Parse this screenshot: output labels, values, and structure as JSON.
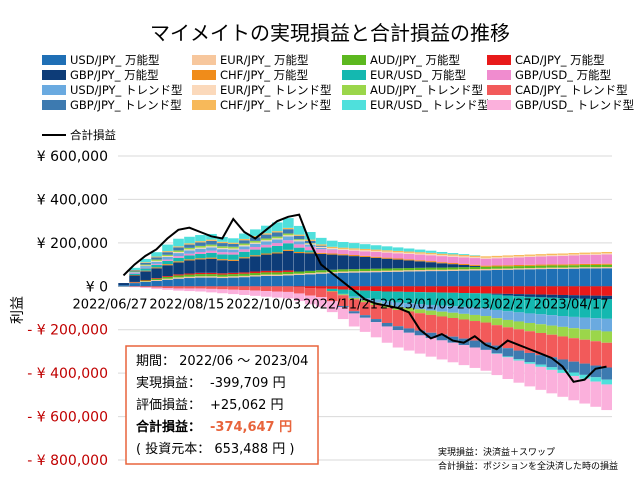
{
  "chart_data": {
    "type": "bar",
    "title": "マイメイトの実現損益と合計損益の推移",
    "ylabel": "利益",
    "ylim": [
      -800000,
      600000
    ],
    "yticks": [
      {
        "value": 600000,
        "label": "¥ 600,000"
      },
      {
        "value": 400000,
        "label": "¥ 400,000"
      },
      {
        "value": 200000,
        "label": "¥ 200,000"
      },
      {
        "value": 0,
        "label": "¥ 0"
      },
      {
        "value": -200000,
        "label": "- ¥ 200,000"
      },
      {
        "value": -400000,
        "label": "- ¥ 400,000"
      },
      {
        "value": -600000,
        "label": "- ¥ 600,000"
      },
      {
        "value": -800000,
        "label": "- ¥ 800,000"
      }
    ],
    "xtick_labels": [
      "2022/06/27",
      "2022/08/15",
      "2022/10/03",
      "2022/11/21",
      "2023/01/09",
      "2023/02/27",
      "2023/04/17"
    ],
    "legend_placement": "top",
    "grid": "horizontal",
    "week_count": 45,
    "series": [
      {
        "name": "USD/JPY_ 万能型",
        "color": "#1f6fb5",
        "values": [
          5000,
          15000,
          20000,
          25000,
          30000,
          35000,
          38000,
          40000,
          40000,
          38000,
          40000,
          42000,
          45000,
          48000,
          48000,
          50000,
          52000,
          55000,
          58000,
          60000,
          62000,
          63000,
          64000,
          65000,
          66000,
          67000,
          68000,
          69000,
          70000,
          70000,
          71000,
          72000,
          73000,
          74000,
          75000,
          76000,
          77000,
          78000,
          79000,
          80000,
          80000,
          81000,
          82000,
          82000,
          83000
        ]
      },
      {
        "name": "EUR/JPY_ 万能型",
        "color": "#f7c79d",
        "values": [
          0,
          2000,
          3000,
          4000,
          5000,
          6000,
          6000,
          6000,
          6000,
          6000,
          6000,
          6000,
          6000,
          6000,
          6000,
          6000,
          6000,
          6000,
          6000,
          6000,
          6000,
          6000,
          6000,
          6000,
          6000,
          6000,
          6000,
          6000,
          6000,
          6000,
          6000,
          6000,
          6000,
          6000,
          6000,
          6000,
          6000,
          6000,
          6000,
          6000,
          6000,
          6000,
          6000,
          6000,
          6000
        ]
      },
      {
        "name": "AUD/JPY_ 万能型",
        "color": "#5cb81f",
        "values": [
          0,
          2000,
          4000,
          6000,
          8000,
          9000,
          10000,
          10000,
          10000,
          10000,
          10000,
          10000,
          10000,
          10000,
          10000,
          10000,
          10000,
          10000,
          10000,
          10000,
          10000,
          10000,
          10000,
          10000,
          10000,
          10000,
          10000,
          10000,
          10000,
          10000,
          10000,
          10000,
          10000,
          10000,
          10000,
          10000,
          10000,
          10000,
          10000,
          10000,
          10000,
          10000,
          10000,
          10000,
          10000
        ]
      },
      {
        "name": "CAD/JPY_ 万能型",
        "color": "#e81a1a",
        "values": [
          0,
          1000,
          2000,
          3000,
          4000,
          5000,
          5000,
          6000,
          6000,
          6000,
          6000,
          6000,
          7000,
          7000,
          7000,
          7000,
          -3000,
          -8000,
          -10000,
          -12000,
          -15000,
          -18000,
          -20000,
          -22000,
          -24000,
          -25000,
          -26000,
          -27000,
          -28000,
          -29000,
          -30000,
          -31000,
          -32000,
          -33000,
          -34000,
          -35000,
          -36000,
          -37000,
          -38000,
          -39000,
          -40000,
          -41000,
          -42000,
          -43000,
          -44000
        ]
      },
      {
        "name": "GBP/JPY_ 万能型",
        "color": "#0d3c78",
        "values": [
          10000,
          30000,
          40000,
          45000,
          50000,
          55000,
          60000,
          62000,
          65000,
          60000,
          55000,
          65000,
          70000,
          75000,
          80000,
          90000,
          85000,
          80000,
          75000,
          70000,
          65000,
          60000,
          55000,
          50000,
          45000,
          40000,
          35000,
          30000,
          25000,
          20000,
          15000,
          10000,
          5000,
          0,
          -5000,
          -8000,
          -10000,
          -12000,
          -13000,
          -14000,
          -15000,
          -16000,
          -16000,
          -16000,
          -16000
        ]
      },
      {
        "name": "CHF/JPY_ 万能型",
        "color": "#f08c1a",
        "values": [
          0,
          2000,
          3000,
          4000,
          5000,
          5000,
          5000,
          5000,
          5000,
          5000,
          5000,
          5000,
          5000,
          5000,
          5000,
          5000,
          5000,
          5000,
          5000,
          5000,
          5000,
          5000,
          5000,
          5000,
          5000,
          5000,
          5000,
          5000,
          5000,
          5000,
          5000,
          5000,
          5000,
          5000,
          5000,
          5000,
          5000,
          5000,
          5000,
          5000,
          5000,
          5000,
          5000,
          5000,
          5000
        ]
      },
      {
        "name": "EUR/USD_ 万能型",
        "color": "#14b8b0",
        "values": [
          0,
          5000,
          10000,
          12000,
          15000,
          16000,
          18000,
          20000,
          22000,
          22000,
          24000,
          25000,
          26000,
          28000,
          30000,
          30000,
          20000,
          10000,
          0,
          -10000,
          -20000,
          -30000,
          -35000,
          -40000,
          -45000,
          -50000,
          -52000,
          -55000,
          -58000,
          -60000,
          -62000,
          -64000,
          -66000,
          -68000,
          -70000,
          -72000,
          -74000,
          -76000,
          -78000,
          -80000,
          -82000,
          -84000,
          -86000,
          -88000,
          -90000
        ]
      },
      {
        "name": "GBP/USD_ 万能型",
        "color": "#f08ccf",
        "values": [
          0,
          2000,
          3000,
          4000,
          6000,
          8000,
          8000,
          9000,
          10000,
          10000,
          10000,
          11000,
          12000,
          12000,
          13000,
          14000,
          15000,
          16000,
          17000,
          18000,
          19000,
          20000,
          21000,
          22000,
          23000,
          24000,
          25000,
          26000,
          27000,
          28000,
          29000,
          30000,
          31000,
          32000,
          33000,
          34000,
          35000,
          36000,
          37000,
          38000,
          39000,
          40000,
          41000,
          42000,
          43000
        ]
      },
      {
        "name": "USD/JPY_ トレンド型",
        "color": "#6aaae0",
        "values": [
          0,
          5000,
          8000,
          10000,
          12000,
          14000,
          15000,
          15000,
          15000,
          14000,
          13000,
          14000,
          15000,
          16000,
          17000,
          18000,
          14000,
          10000,
          6000,
          2000,
          -2000,
          -6000,
          -10000,
          -14000,
          -18000,
          -20000,
          -22000,
          -24000,
          -26000,
          -28000,
          -30000,
          -32000,
          -34000,
          -36000,
          -38000,
          -40000,
          -42000,
          -44000,
          -46000,
          -48000,
          -50000,
          -52000,
          -54000,
          -56000,
          -58000
        ]
      },
      {
        "name": "EUR/JPY_ トレンド型",
        "color": "#fbd9bb",
        "values": [
          0,
          2000,
          3000,
          4000,
          4000,
          5000,
          5000,
          5000,
          5000,
          5000,
          5000,
          5000,
          5000,
          5000,
          5000,
          5000,
          5000,
          5000,
          5000,
          5000,
          5000,
          5000,
          5000,
          5000,
          5000,
          5000,
          5000,
          5000,
          5000,
          5000,
          5000,
          5000,
          5000,
          5000,
          5000,
          5000,
          5000,
          5000,
          5000,
          5000,
          5000,
          5000,
          5000,
          5000,
          5000
        ]
      },
      {
        "name": "AUD/JPY_ トレンド型",
        "color": "#9bd64a",
        "values": [
          0,
          2000,
          4000,
          6000,
          6000,
          7000,
          7000,
          8000,
          8000,
          8000,
          8000,
          8000,
          8000,
          8000,
          8000,
          8000,
          5000,
          2000,
          0,
          -2000,
          -4000,
          -6000,
          -8000,
          -10000,
          -12000,
          -14000,
          -16000,
          -18000,
          -20000,
          -22000,
          -24000,
          -26000,
          -28000,
          -30000,
          -32000,
          -34000,
          -36000,
          -38000,
          -40000,
          -42000,
          -44000,
          -46000,
          -48000,
          -50000,
          -52000
        ]
      },
      {
        "name": "CAD/JPY_ トレンド型",
        "color": "#f25a5a",
        "values": [
          0,
          -2000,
          -4000,
          -6000,
          -8000,
          -10000,
          -10000,
          -10000,
          -12000,
          -14000,
          -16000,
          -18000,
          -20000,
          -22000,
          -24000,
          -26000,
          -30000,
          -35000,
          -40000,
          -45000,
          -50000,
          -55000,
          -60000,
          -65000,
          -70000,
          -75000,
          -78000,
          -80000,
          -82000,
          -84000,
          -86000,
          -88000,
          -90000,
          -92000,
          -94000,
          -96000,
          -98000,
          -100000,
          -102000,
          -104000,
          -106000,
          -108000,
          -110000,
          -112000,
          -114000
        ]
      },
      {
        "name": "GBP/JPY_ トレンド型",
        "color": "#3d7ab0",
        "values": [
          0,
          5000,
          8000,
          10000,
          12000,
          14000,
          15000,
          16000,
          17000,
          15000,
          13000,
          15000,
          17000,
          18000,
          19000,
          20000,
          15000,
          10000,
          5000,
          0,
          -5000,
          -10000,
          -12000,
          -14000,
          -16000,
          -18000,
          -20000,
          -22000,
          -24000,
          -26000,
          -28000,
          -30000,
          -32000,
          -34000,
          -36000,
          -38000,
          -40000,
          -42000,
          -44000,
          -46000,
          -48000,
          -50000,
          -52000,
          -54000,
          -56000
        ]
      },
      {
        "name": "CHF/JPY_ トレンド型",
        "color": "#f7b95a",
        "values": [
          0,
          2000,
          3000,
          4000,
          5000,
          5000,
          6000,
          6000,
          6000,
          6000,
          6000,
          6000,
          6000,
          6000,
          6000,
          6000,
          6000,
          6000,
          6000,
          6000,
          6000,
          6000,
          6000,
          6000,
          6000,
          6000,
          6000,
          6000,
          6000,
          6000,
          6000,
          6000,
          6000,
          6000,
          6000,
          6000,
          6000,
          6000,
          6000,
          6000,
          6000,
          6000,
          6000,
          6000,
          6000
        ]
      },
      {
        "name": "EUR/USD_ トレンド型",
        "color": "#4fe0dc",
        "values": [
          0,
          10000,
          15000,
          20000,
          30000,
          35000,
          30000,
          28000,
          26000,
          22000,
          20000,
          25000,
          30000,
          35000,
          40000,
          45000,
          40000,
          35000,
          30000,
          28000,
          26000,
          24000,
          22000,
          20000,
          18000,
          16000,
          14000,
          12000,
          10000,
          8000,
          6000,
          4000,
          2000,
          0,
          -2000,
          -4000,
          -6000,
          -8000,
          -10000,
          -12000,
          -14000,
          -16000,
          -18000,
          -20000,
          -22000
        ]
      },
      {
        "name": "GBP/USD_ トレンド型",
        "color": "#fbb0dc",
        "values": [
          0,
          -2000,
          -4000,
          -6000,
          -8000,
          -10000,
          -12000,
          -14000,
          -16000,
          -18000,
          -20000,
          -22000,
          -24000,
          -26000,
          -28000,
          -30000,
          -35000,
          -40000,
          -45000,
          -50000,
          -55000,
          -60000,
          -65000,
          -70000,
          -75000,
          -80000,
          -82000,
          -84000,
          -86000,
          -88000,
          -90000,
          -92000,
          -94000,
          -96000,
          -98000,
          -100000,
          -102000,
          -104000,
          -106000,
          -108000,
          -110000,
          -112000,
          -114000,
          -116000,
          -118000
        ]
      }
    ],
    "line": {
      "name": "合計損益",
      "color": "#000000",
      "values": [
        50000,
        100000,
        140000,
        170000,
        220000,
        260000,
        270000,
        250000,
        230000,
        220000,
        310000,
        250000,
        220000,
        260000,
        300000,
        320000,
        330000,
        200000,
        100000,
        60000,
        20000,
        -20000,
        -60000,
        -80000,
        -90000,
        -100000,
        -120000,
        -200000,
        -240000,
        -220000,
        -250000,
        -260000,
        -230000,
        -270000,
        -290000,
        -250000,
        -270000,
        -290000,
        -310000,
        -330000,
        -370000,
        -440000,
        -430000,
        -380000,
        -370000
      ]
    }
  },
  "summary": {
    "period": "期間： 2022/06 〜 2023/04",
    "realized_label": "実現損益：",
    "realized_value": "-399,709 円",
    "unrealized_label": "評価損益：",
    "unrealized_value": "+25,062 円",
    "total_label": "合計損益：",
    "total_value": "-374,647 円",
    "principal": "( 投資元本： 653,488 円 )"
  },
  "notes": {
    "note1": "実現損益：決済益＋スワップ",
    "note2": "合計損益：ポジションを全決済した時の損益"
  },
  "colors": {
    "summary_border": "#e8643c",
    "total_value": "#e8643c"
  }
}
